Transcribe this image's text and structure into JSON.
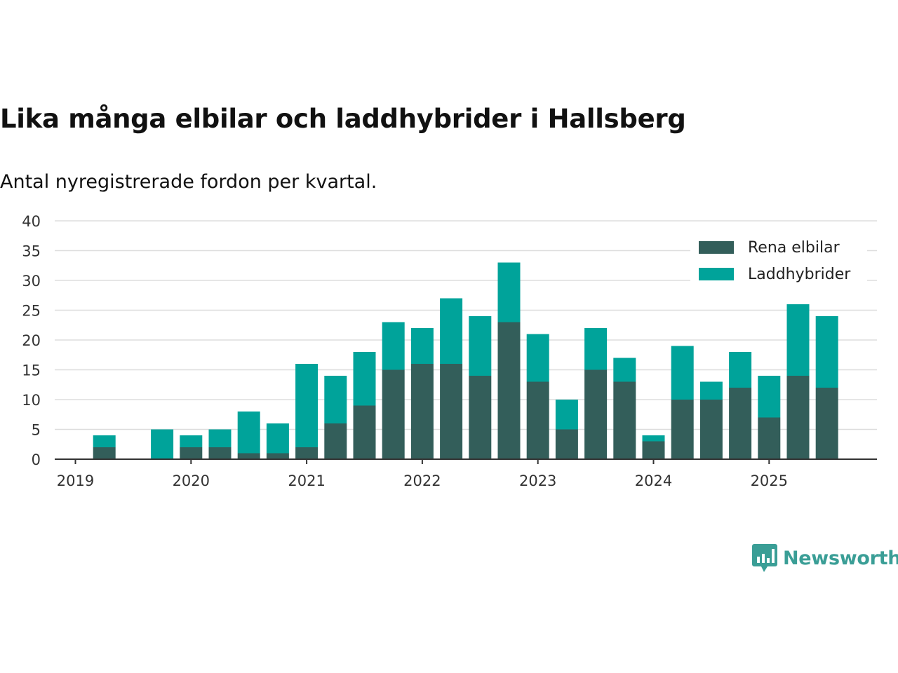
{
  "chart_data": {
    "type": "bar",
    "stacked": true,
    "title": "Lika många elbilar och laddhybrider i Hallsberg",
    "subtitle": "Antal nyregistrerade fordon per kvartal.",
    "ylim": [
      0,
      40
    ],
    "yticks": [
      0,
      5,
      10,
      15,
      20,
      25,
      30,
      35,
      40
    ],
    "xticks": [
      "2019",
      "2020",
      "2021",
      "2022",
      "2023",
      "2024",
      "2025"
    ],
    "legend_position": "top-right",
    "grid": true,
    "categories": [
      "2019 Q1",
      "2019 Q2",
      "2019 Q3",
      "2019 Q4",
      "2020 Q1",
      "2020 Q2",
      "2020 Q3",
      "2020 Q4",
      "2021 Q1",
      "2021 Q2",
      "2021 Q3",
      "2021 Q4",
      "2022 Q1",
      "2022 Q2",
      "2022 Q3",
      "2022 Q4",
      "2023 Q1",
      "2023 Q2",
      "2023 Q3",
      "2023 Q4",
      "2024 Q1",
      "2024 Q2",
      "2024 Q3",
      "2024 Q4",
      "2025 Q1",
      "2025 Q2",
      "2025 Q3"
    ],
    "series": [
      {
        "name": "Rena elbilar",
        "color": "#335e5a",
        "values": [
          0,
          2,
          0,
          0,
          2,
          2,
          1,
          1,
          2,
          6,
          9,
          15,
          16,
          16,
          14,
          23,
          13,
          5,
          15,
          13,
          3,
          10,
          10,
          12,
          7,
          14,
          12
        ]
      },
      {
        "name": "Laddhybrider",
        "color": "#00a39a",
        "values": [
          0,
          2,
          0,
          5,
          2,
          3,
          7,
          5,
          14,
          8,
          9,
          8,
          6,
          11,
          10,
          10,
          8,
          5,
          7,
          4,
          1,
          9,
          3,
          6,
          7,
          12,
          12
        ]
      }
    ]
  },
  "brand": {
    "name": "Newsworthy",
    "logo_icon": "bar-chart-speech-bubble-icon"
  }
}
